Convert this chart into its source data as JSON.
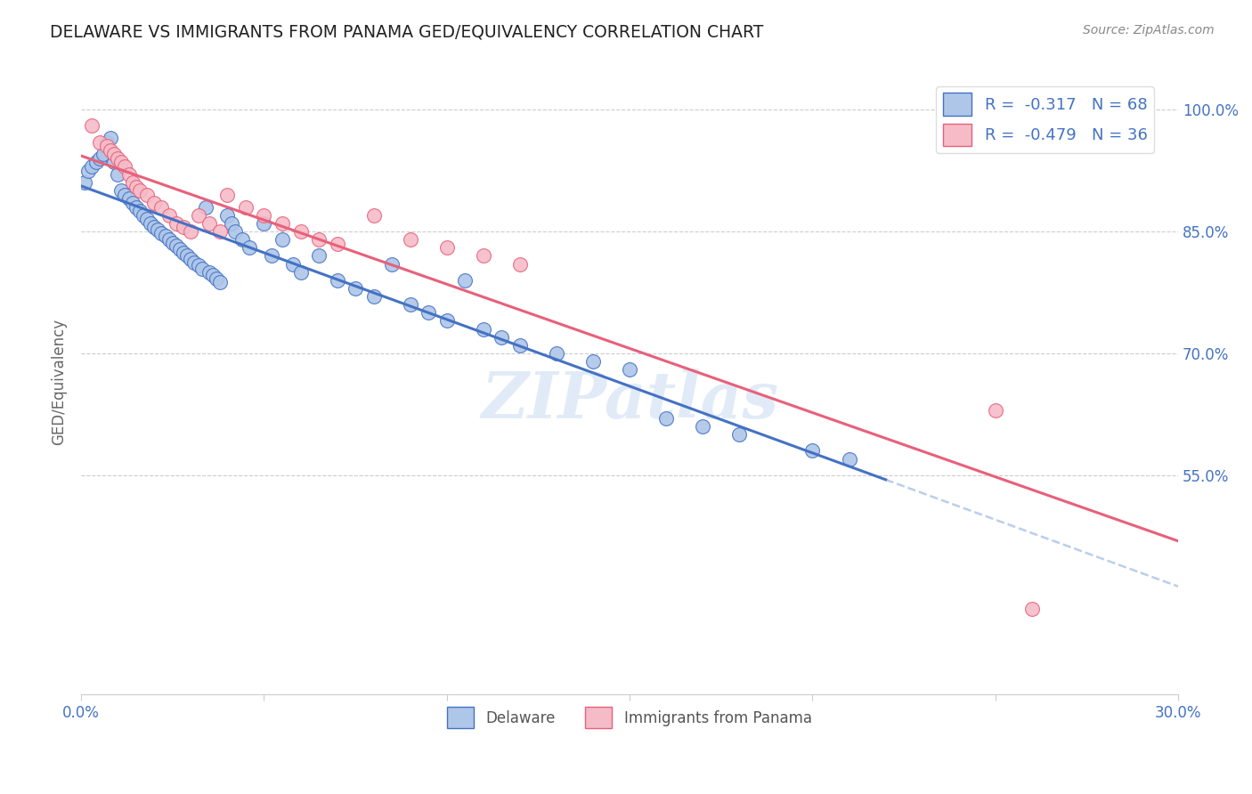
{
  "title": "DELAWARE VS IMMIGRANTS FROM PANAMA GED/EQUIVALENCY CORRELATION CHART",
  "source": "Source: ZipAtlas.com",
  "ylabel": "GED/Equivalency",
  "ytick_labels": [
    "100.0%",
    "85.0%",
    "70.0%",
    "55.0%"
  ],
  "ytick_positions": [
    1.0,
    0.85,
    0.7,
    0.55
  ],
  "xlim": [
    0.0,
    0.3
  ],
  "ylim": [
    0.28,
    1.05
  ],
  "legend_r_delaware": "R =  -0.317",
  "legend_n_delaware": "N = 68",
  "legend_r_panama": "R =  -0.479",
  "legend_n_panama": "N = 36",
  "legend_label_delaware": "Delaware",
  "legend_label_panama": "Immigrants from Panama",
  "color_delaware": "#aec6e8",
  "color_panama": "#f5bcc8",
  "color_line_delaware": "#4472c4",
  "color_line_panama": "#e8607a",
  "color_line_dashed": "#aec6e8",
  "color_text_blue": "#4472c4",
  "watermark": "ZIPatlas",
  "delaware_x": [
    0.001,
    0.002,
    0.003,
    0.004,
    0.005,
    0.006,
    0.007,
    0.008,
    0.009,
    0.01,
    0.011,
    0.012,
    0.013,
    0.014,
    0.015,
    0.016,
    0.017,
    0.018,
    0.019,
    0.02,
    0.021,
    0.022,
    0.023,
    0.024,
    0.025,
    0.026,
    0.027,
    0.028,
    0.029,
    0.03,
    0.031,
    0.032,
    0.033,
    0.034,
    0.035,
    0.036,
    0.037,
    0.038,
    0.04,
    0.041,
    0.042,
    0.044,
    0.046,
    0.05,
    0.052,
    0.055,
    0.058,
    0.06,
    0.065,
    0.07,
    0.075,
    0.08,
    0.085,
    0.09,
    0.095,
    0.1,
    0.105,
    0.11,
    0.115,
    0.12,
    0.13,
    0.14,
    0.15,
    0.16,
    0.17,
    0.18,
    0.2,
    0.21
  ],
  "delaware_y": [
    0.91,
    0.925,
    0.93,
    0.935,
    0.94,
    0.945,
    0.96,
    0.965,
    0.935,
    0.92,
    0.9,
    0.895,
    0.89,
    0.885,
    0.88,
    0.875,
    0.87,
    0.865,
    0.86,
    0.856,
    0.852,
    0.848,
    0.844,
    0.84,
    0.836,
    0.832,
    0.828,
    0.824,
    0.82,
    0.816,
    0.812,
    0.808,
    0.804,
    0.88,
    0.8,
    0.796,
    0.792,
    0.788,
    0.87,
    0.86,
    0.85,
    0.84,
    0.83,
    0.86,
    0.82,
    0.84,
    0.81,
    0.8,
    0.82,
    0.79,
    0.78,
    0.77,
    0.81,
    0.76,
    0.75,
    0.74,
    0.79,
    0.73,
    0.72,
    0.71,
    0.7,
    0.69,
    0.68,
    0.62,
    0.61,
    0.6,
    0.58,
    0.57
  ],
  "panama_x": [
    0.003,
    0.005,
    0.007,
    0.008,
    0.009,
    0.01,
    0.011,
    0.012,
    0.013,
    0.014,
    0.015,
    0.016,
    0.018,
    0.02,
    0.022,
    0.024,
    0.026,
    0.028,
    0.03,
    0.032,
    0.035,
    0.038,
    0.04,
    0.045,
    0.05,
    0.055,
    0.06,
    0.065,
    0.07,
    0.08,
    0.09,
    0.1,
    0.11,
    0.12,
    0.25,
    0.26
  ],
  "panama_y": [
    0.98,
    0.96,
    0.955,
    0.95,
    0.945,
    0.94,
    0.935,
    0.93,
    0.92,
    0.91,
    0.905,
    0.9,
    0.895,
    0.885,
    0.88,
    0.87,
    0.86,
    0.855,
    0.85,
    0.87,
    0.86,
    0.85,
    0.895,
    0.88,
    0.87,
    0.86,
    0.85,
    0.84,
    0.835,
    0.87,
    0.84,
    0.83,
    0.82,
    0.81,
    0.63,
    0.385
  ]
}
